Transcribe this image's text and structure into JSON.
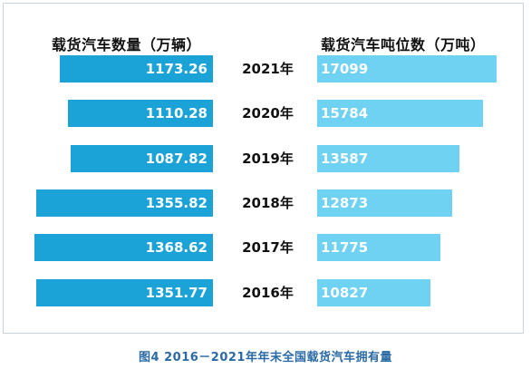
{
  "caption": "图4  2016－2021年年末全国载货汽车拥有量",
  "chart_data": {
    "type": "bar",
    "orientation": "horizontal",
    "layout": "back-to-back",
    "categories": [
      "2021年",
      "2020年",
      "2019年",
      "2018年",
      "2017年",
      "2016年"
    ],
    "series": [
      {
        "name": "载货汽车数量（万辆）",
        "values": [
          1173.26,
          1110.28,
          1087.82,
          1355.82,
          1368.62,
          1351.77
        ],
        "labels": [
          "1173.26",
          "1110.28",
          "1087.82",
          "1355.82",
          "1368.62",
          "1351.77"
        ],
        "color": "#1ba3d8",
        "direction": "left"
      },
      {
        "name": "载货汽车吨位数（万吨）",
        "values": [
          17099,
          15784,
          13587,
          12873,
          11775,
          10827
        ],
        "labels": [
          "17099",
          "15784",
          "13587",
          "12873",
          "11775",
          "10827"
        ],
        "color": "#6fd2f2",
        "direction": "right"
      }
    ],
    "grid": false,
    "legend": "none"
  }
}
